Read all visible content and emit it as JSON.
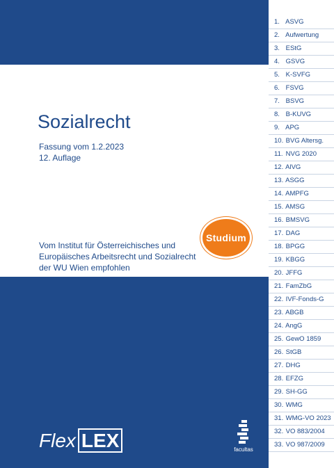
{
  "cover": {
    "title": "Sozialrecht",
    "edition_line1": "Fassung vom 1.2.2023",
    "edition_line2": "12. Auflage",
    "recommend_line1": "Vom Institut für Österreichisches und",
    "recommend_line2": "Europäisches Arbeitsrecht und Sozialrecht",
    "recommend_line3": "der WU Wien empfohlen",
    "badge": "Studium",
    "logo_flex": "Flex",
    "logo_lex": "LEX",
    "publisher": "facultas"
  },
  "colors": {
    "primary_blue": "#1f4a8a",
    "badge_orange": "#ef7c1a",
    "tab_divider": "#c9d4e3"
  },
  "tabs": [
    {
      "num": "1.",
      "label": "ASVG"
    },
    {
      "num": "2.",
      "label": "Aufwertung"
    },
    {
      "num": "3.",
      "label": "EStG"
    },
    {
      "num": "4.",
      "label": "GSVG"
    },
    {
      "num": "5.",
      "label": "K-SVFG"
    },
    {
      "num": "6.",
      "label": "FSVG"
    },
    {
      "num": "7.",
      "label": "BSVG"
    },
    {
      "num": "8.",
      "label": "B-KUVG"
    },
    {
      "num": "9.",
      "label": "APG"
    },
    {
      "num": "10.",
      "label": "BVG Altersg."
    },
    {
      "num": "11.",
      "label": "NVG 2020"
    },
    {
      "num": "12.",
      "label": "AlVG"
    },
    {
      "num": "13.",
      "label": "ASGG"
    },
    {
      "num": "14.",
      "label": "AMPFG"
    },
    {
      "num": "15.",
      "label": "AMSG"
    },
    {
      "num": "16.",
      "label": "BMSVG"
    },
    {
      "num": "17.",
      "label": "DAG"
    },
    {
      "num": "18.",
      "label": "BPGG"
    },
    {
      "num": "19.",
      "label": "KBGG"
    },
    {
      "num": "20.",
      "label": "JFFG"
    },
    {
      "num": "21.",
      "label": "FamZbG"
    },
    {
      "num": "22.",
      "label": "IVF-Fonds-G"
    },
    {
      "num": "23.",
      "label": "ABGB"
    },
    {
      "num": "24.",
      "label": "AngG"
    },
    {
      "num": "25.",
      "label": "GewO 1859"
    },
    {
      "num": "26.",
      "label": "StGB"
    },
    {
      "num": "27.",
      "label": "DHG"
    },
    {
      "num": "28.",
      "label": "EFZG"
    },
    {
      "num": "29.",
      "label": "SH-GG"
    },
    {
      "num": "30.",
      "label": "WMG"
    },
    {
      "num": "31.",
      "label": "WMG-VO 2023"
    },
    {
      "num": "32.",
      "label": "VO 883/2004"
    },
    {
      "num": "33.",
      "label": "VO 987/2009"
    }
  ]
}
